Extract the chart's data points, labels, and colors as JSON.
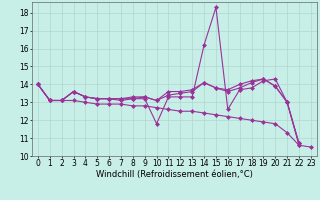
{
  "background_color": "#c8eee8",
  "grid_color": "#b0d8cc",
  "line_color": "#993399",
  "marker": "D",
  "markersize": 2.0,
  "linewidth": 0.8,
  "xlabel": "Windchill (Refroidissement éolien,°C)",
  "xlabel_fontsize": 6,
  "tick_fontsize": 5.5,
  "xlim_min": -0.5,
  "xlim_max": 23.5,
  "ylim_min": 10,
  "ylim_max": 18.6,
  "yticks": [
    10,
    11,
    12,
    13,
    14,
    15,
    16,
    17,
    18
  ],
  "xticks": [
    0,
    1,
    2,
    3,
    4,
    5,
    6,
    7,
    8,
    9,
    10,
    11,
    12,
    13,
    14,
    15,
    16,
    17,
    18,
    19,
    20,
    21,
    22,
    23
  ],
  "series": [
    [
      14.0,
      13.1,
      13.1,
      13.6,
      13.3,
      13.2,
      13.2,
      13.1,
      13.2,
      13.2,
      11.8,
      13.3,
      13.3,
      13.3,
      16.2,
      18.3,
      12.6,
      13.7,
      13.8,
      14.2,
      14.3,
      13.0,
      10.6,
      null
    ],
    [
      14.0,
      13.1,
      13.1,
      13.6,
      13.3,
      13.2,
      13.2,
      13.2,
      13.3,
      13.3,
      13.1,
      13.4,
      13.5,
      13.6,
      14.1,
      13.8,
      13.6,
      13.8,
      14.1,
      14.3,
      13.9,
      13.0,
      10.7,
      null
    ],
    [
      14.0,
      13.1,
      13.1,
      13.6,
      13.3,
      13.2,
      13.2,
      13.2,
      13.2,
      13.3,
      13.1,
      13.6,
      13.6,
      13.7,
      14.1,
      13.8,
      13.7,
      14.0,
      14.2,
      14.3,
      13.9,
      13.0,
      10.7,
      null
    ],
    [
      14.0,
      13.1,
      13.1,
      13.1,
      13.0,
      12.9,
      12.9,
      12.9,
      12.8,
      12.8,
      12.7,
      12.6,
      12.5,
      12.5,
      12.4,
      12.3,
      12.2,
      12.1,
      12.0,
      11.9,
      11.8,
      11.3,
      10.6,
      10.5
    ]
  ]
}
